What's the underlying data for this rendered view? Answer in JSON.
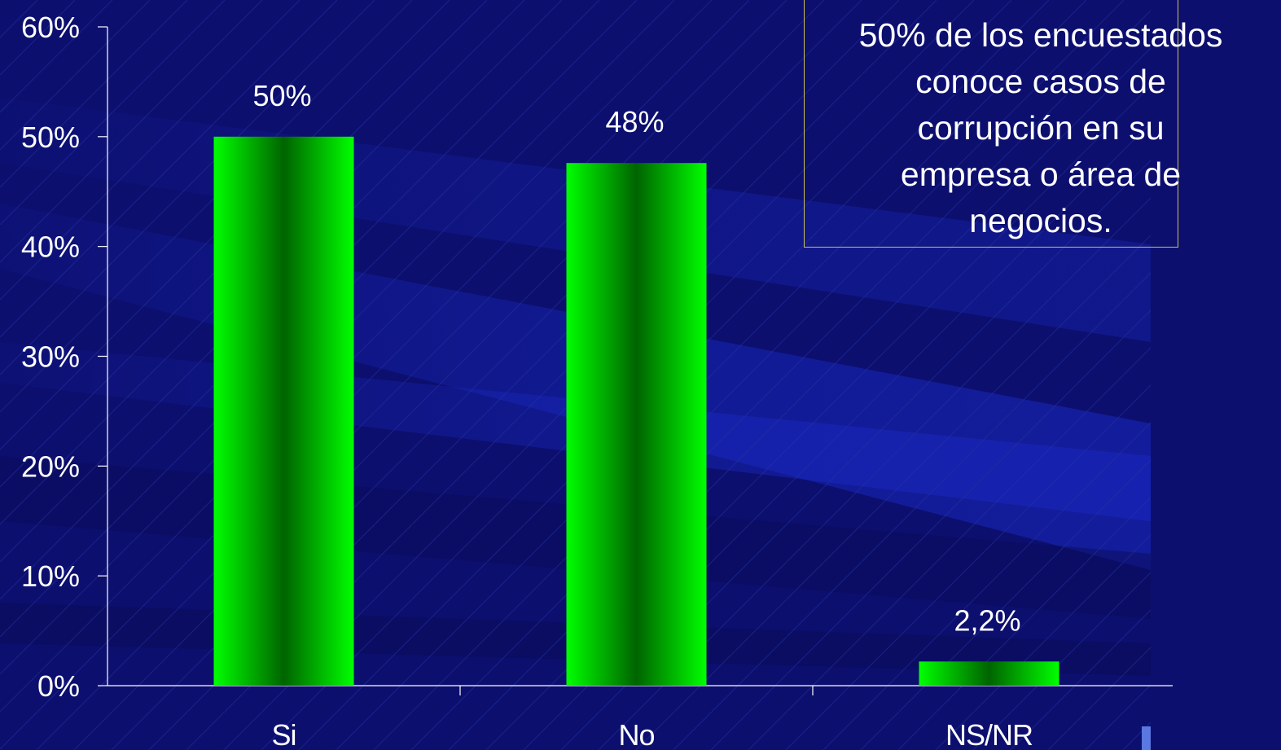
{
  "chart_data": {
    "type": "bar",
    "categories": [
      "Si",
      "No",
      "NS/NR"
    ],
    "values": [
      50,
      47.6,
      2.2
    ],
    "data_labels": [
      "50%",
      "48%",
      "2,2%"
    ],
    "y_ticks": [
      "0%",
      "10%",
      "20%",
      "30%",
      "40%",
      "50%",
      "60%"
    ],
    "ylim": [
      0,
      60
    ],
    "grid": false,
    "legend": "none",
    "bar_color": "#00ff00",
    "bar_shade_color": "#006400",
    "axis_color": "#ffffff"
  },
  "callout": {
    "text": "50% de los encuestados\nconoce casos de\ncorrupción en su\nempresa o área de\nnegocios.",
    "border_color": "#c9c25a"
  },
  "background": {
    "color": "#0c0f6e",
    "ray_color": "#1a2ac8"
  }
}
